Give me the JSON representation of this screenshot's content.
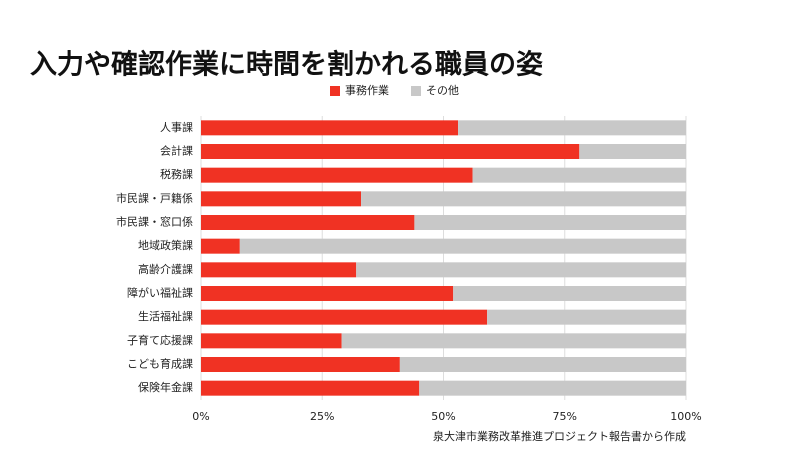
{
  "chart_data": {
    "type": "stacked_bar_horizontal",
    "title": "入力や確認作業に時間を割かれる職員の姿",
    "categories": [
      "人事課",
      "会計課",
      "税務課",
      "市民課・戸籍係",
      "市民課・窓口係",
      "地域政策課",
      "高齢介護課",
      "障がい福祉課",
      "生活福祉課",
      "子育て応援課",
      "こども育成課",
      "保険年金課"
    ],
    "series": [
      {
        "name": "事務作業",
        "color": "#f03223",
        "values": [
          53,
          78,
          56,
          33,
          44,
          8,
          32,
          52,
          59,
          29,
          41,
          45
        ]
      },
      {
        "name": "その他",
        "color": "#c8c8c8",
        "values": [
          47,
          22,
          44,
          67,
          56,
          92,
          68,
          48,
          41,
          71,
          59,
          55
        ]
      }
    ],
    "xlim": [
      0,
      100
    ],
    "xticks": [
      {
        "value": 0,
        "label": "0%"
      },
      {
        "value": 25,
        "label": "25%"
      },
      {
        "value": 50,
        "label": "50%"
      },
      {
        "value": 75,
        "label": "75%"
      },
      {
        "value": 100,
        "label": "100%"
      }
    ],
    "grid": true,
    "legend": "top",
    "source": "泉大津市業務改革推進プロジェクト報告書から作成"
  }
}
